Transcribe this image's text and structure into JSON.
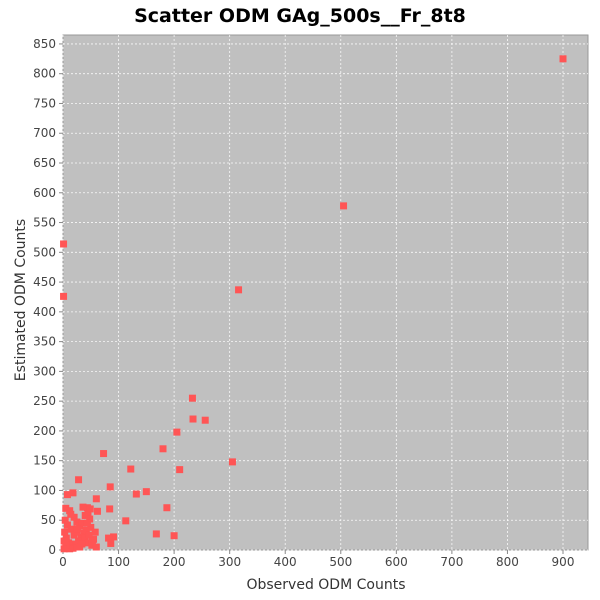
{
  "chart_data": {
    "type": "scatter",
    "title": "Scatter ODM GAg_500s__Fr_8t8",
    "xlabel": "Observed ODM Counts",
    "ylabel": "Estimated ODM Counts",
    "xlim": [
      0,
      945
    ],
    "ylim": [
      0,
      865
    ],
    "xticks": [
      0,
      100,
      200,
      300,
      400,
      500,
      600,
      700,
      800,
      900
    ],
    "yticks": [
      0,
      50,
      100,
      150,
      200,
      250,
      300,
      350,
      400,
      450,
      500,
      550,
      600,
      650,
      700,
      750,
      800,
      850
    ],
    "grid": true,
    "colors": {
      "plot_background": "#c0c0c0",
      "marker": "#ff5555",
      "grid": "#ffffff"
    },
    "series": [
      {
        "points": [
          [
            900,
            825
          ],
          [
            505,
            578
          ],
          [
            316,
            437
          ],
          [
            1,
            514
          ],
          [
            1,
            426
          ],
          [
            233,
            255
          ],
          [
            234,
            220
          ],
          [
            256,
            218
          ],
          [
            205,
            198
          ],
          [
            180,
            170
          ],
          [
            305,
            148
          ],
          [
            210,
            135
          ],
          [
            73,
            162
          ],
          [
            122,
            136
          ],
          [
            150,
            98
          ],
          [
            132,
            94
          ],
          [
            85,
            106
          ],
          [
            28,
            118
          ],
          [
            18,
            96
          ],
          [
            8,
            93
          ],
          [
            60,
            86
          ],
          [
            187,
            71
          ],
          [
            113,
            49
          ],
          [
            168,
            27
          ],
          [
            200,
            24
          ],
          [
            91,
            22
          ],
          [
            82,
            20
          ],
          [
            86,
            11
          ],
          [
            62,
            65
          ],
          [
            44,
            71
          ],
          [
            49,
            69
          ],
          [
            36,
            72
          ],
          [
            84,
            69
          ],
          [
            5,
            70
          ],
          [
            12,
            66
          ],
          [
            20,
            55
          ],
          [
            25,
            47
          ],
          [
            30,
            40
          ],
          [
            40,
            58
          ],
          [
            45,
            60
          ],
          [
            48,
            52
          ],
          [
            50,
            38
          ],
          [
            42,
            33
          ],
          [
            38,
            28
          ],
          [
            33,
            22
          ],
          [
            28,
            15
          ],
          [
            22,
            10
          ],
          [
            15,
            5
          ],
          [
            10,
            12
          ],
          [
            6,
            20
          ],
          [
            3,
            30
          ],
          [
            8,
            42
          ],
          [
            15,
            35
          ],
          [
            20,
            25
          ],
          [
            25,
            30
          ],
          [
            35,
            45
          ],
          [
            40,
            20
          ],
          [
            45,
            12
          ],
          [
            52,
            8
          ],
          [
            55,
            18
          ],
          [
            58,
            30
          ],
          [
            47,
            25
          ],
          [
            30,
            5
          ],
          [
            18,
            3
          ],
          [
            12,
            2
          ],
          [
            5,
            8
          ],
          [
            2,
            2
          ],
          [
            60,
            5
          ],
          [
            2,
            15
          ],
          [
            4,
            50
          ],
          [
            14,
            60
          ],
          [
            26,
            35
          ],
          [
            34,
            10
          ],
          [
            44,
            45
          ],
          [
            53,
            15
          ]
        ]
      }
    ]
  }
}
